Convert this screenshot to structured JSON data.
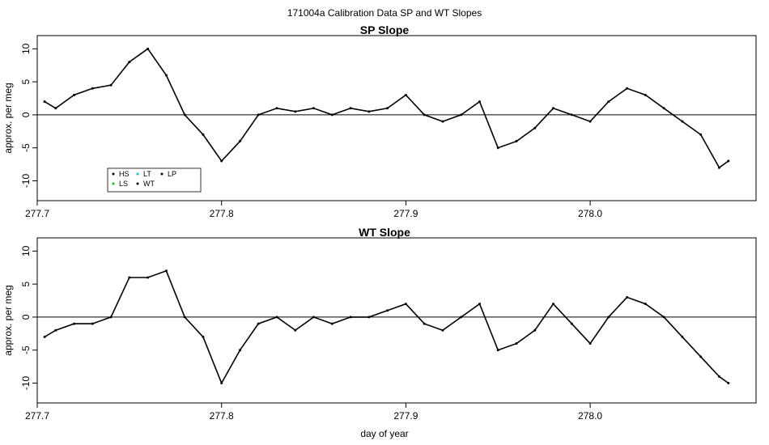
{
  "figure": {
    "title": "171004a   Calibration Data SP and WT Slopes",
    "xlabel": "day of year"
  },
  "legend": {
    "entries": [
      {
        "label": "HS",
        "color": "#000000"
      },
      {
        "label": "LT",
        "color": "#00cccc"
      },
      {
        "label": "LP",
        "color": "#000000"
      },
      {
        "label": "LS",
        "color": "#00cc00"
      },
      {
        "label": "WT",
        "color": "#000000"
      }
    ]
  },
  "chart_data": [
    {
      "type": "line",
      "title": "SP Slope",
      "xlabel": "",
      "ylabel": "approx. per meg",
      "xlim": [
        277.7,
        278.09
      ],
      "ylim": [
        -13,
        12
      ],
      "x_ticks": [
        277.7,
        277.8,
        277.9,
        278.0
      ],
      "x_tick_labels": [
        "277.7",
        "277.8",
        "277.9",
        "278.0"
      ],
      "y_ticks": [
        -10,
        -5,
        0,
        5,
        10
      ],
      "y_tick_labels": [
        "-10",
        "-5",
        "0",
        "5",
        "10"
      ],
      "hline": 0,
      "legend": "bottom-left",
      "series": [
        {
          "color": "#000000",
          "x": [
            277.704,
            277.71,
            277.72,
            277.73,
            277.74,
            277.75,
            277.76,
            277.77,
            277.78,
            277.79,
            277.8,
            277.81,
            277.82,
            277.83,
            277.84,
            277.85,
            277.86,
            277.87,
            277.88,
            277.89,
            277.9,
            277.91,
            277.92,
            277.93,
            277.94,
            277.95,
            277.96,
            277.97,
            277.98,
            277.99,
            278.0,
            278.01,
            278.02,
            278.03,
            278.04,
            278.05,
            278.06,
            278.07,
            278.075
          ],
          "y": [
            2,
            1,
            3,
            4,
            4.5,
            8,
            10,
            6,
            0,
            -3,
            -7,
            -4,
            0,
            1,
            0.5,
            1,
            0,
            1,
            0.5,
            1,
            3,
            0,
            -1,
            0,
            2,
            -5,
            -4,
            -2,
            1,
            0,
            -1,
            2,
            4,
            3,
            1,
            -1,
            -3,
            -8,
            -7
          ]
        }
      ]
    },
    {
      "type": "line",
      "title": "WT Slope",
      "xlabel": "day of year",
      "ylabel": "approx. per meg",
      "xlim": [
        277.7,
        278.09
      ],
      "ylim": [
        -13,
        12
      ],
      "x_ticks": [
        277.7,
        277.8,
        277.9,
        278.0
      ],
      "x_tick_labels": [
        "277.7",
        "277.8",
        "277.9",
        "278.0"
      ],
      "y_ticks": [
        -10,
        -5,
        0,
        5,
        10
      ],
      "y_tick_labels": [
        "-10",
        "-5",
        "0",
        "5",
        "10"
      ],
      "hline": 0,
      "series": [
        {
          "color": "#000000",
          "x": [
            277.704,
            277.71,
            277.72,
            277.73,
            277.74,
            277.75,
            277.76,
            277.77,
            277.78,
            277.79,
            277.8,
            277.81,
            277.82,
            277.83,
            277.84,
            277.85,
            277.86,
            277.87,
            277.88,
            277.89,
            277.9,
            277.91,
            277.92,
            277.93,
            277.94,
            277.95,
            277.96,
            277.97,
            277.98,
            277.99,
            278.0,
            278.01,
            278.02,
            278.03,
            278.04,
            278.05,
            278.06,
            278.07,
            278.075
          ],
          "y": [
            -3,
            -2,
            -1,
            -1,
            0,
            6,
            6,
            7,
            0,
            -3,
            -10,
            -5,
            -1,
            0,
            -2,
            0,
            -1,
            0,
            0,
            1,
            2,
            -1,
            -2,
            0,
            2,
            -5,
            -4,
            -2,
            2,
            -1,
            -4,
            0,
            3,
            2,
            0,
            -3,
            -6,
            -9,
            -10
          ]
        }
      ]
    }
  ]
}
